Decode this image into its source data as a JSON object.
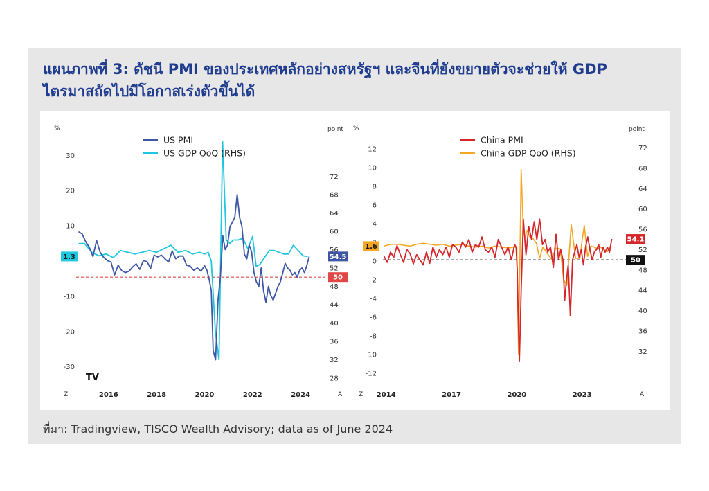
{
  "title_line1": "แผนภาพที่ 3: ดัชนี PMI ของประเทศหลักอย่างสหรัฐฯ และจีนที่ยังขยายตัวจะช่วยให้ GDP",
  "title_line2": "ไตรมาสถัดไปมีโอกาสเร่งตัวขึ้นได้",
  "source": "ที่มา: Tradingview, TISCO Wealth Advisory; data as of June 2024",
  "chart_data": [
    {
      "type": "line",
      "left_unit": "%",
      "right_unit": "point",
      "corner_left": "Z",
      "corner_right": "A",
      "logo": "TV",
      "left_axis": {
        "ticks": [
          30,
          20,
          10,
          -10,
          -20,
          -30
        ],
        "range": [
          -34,
          34
        ]
      },
      "right_axis": {
        "ticks": [
          72,
          68,
          64,
          60,
          56,
          52,
          48,
          44,
          40,
          36,
          32,
          28
        ],
        "range": [
          27.4,
          79.6
        ]
      },
      "x_labels": [
        "2016",
        "2018",
        "2020",
        "2022",
        "2024"
      ],
      "x_label_positions": [
        2016,
        2018,
        2020,
        2022,
        2024
      ],
      "x_range": [
        2014.65,
        2024.4
      ],
      "legend": [
        "US PMI",
        "US GDP QoQ (RHS)"
      ],
      "colors": {
        "pmi": "#3d57a5",
        "gdp": "#1ec6de",
        "ref": "#e04848"
      },
      "series": [
        {
          "name": "US PMI",
          "x": [
            2014.75,
            2014.9,
            2015.05,
            2015.2,
            2015.35,
            2015.5,
            2015.65,
            2015.8,
            2015.95,
            2016.1,
            2016.25,
            2016.4,
            2016.55,
            2016.7,
            2016.85,
            2017.0,
            2017.15,
            2017.3,
            2017.45,
            2017.6,
            2017.75,
            2017.9,
            2018.05,
            2018.2,
            2018.35,
            2018.5,
            2018.65,
            2018.8,
            2018.95,
            2019.1,
            2019.25,
            2019.4,
            2019.55,
            2019.7,
            2019.85,
            2020.0,
            2020.1,
            2020.2,
            2020.28,
            2020.36,
            2020.46,
            2020.56,
            2020.66,
            2020.76,
            2020.86,
            2020.96,
            2021.06,
            2021.16,
            2021.26,
            2021.36,
            2021.46,
            2021.56,
            2021.66,
            2021.76,
            2021.86,
            2021.96,
            2022.06,
            2022.16,
            2022.26,
            2022.36,
            2022.46,
            2022.56,
            2022.66,
            2022.76,
            2022.86,
            2022.96,
            2023.06,
            2023.16,
            2023.26,
            2023.36,
            2023.46,
            2023.56,
            2023.66,
            2023.76,
            2023.86,
            2023.96,
            2024.06,
            2024.16,
            2024.26,
            2024.36
          ],
          "values": [
            59.9,
            59.4,
            57.7,
            56.5,
            54.5,
            58.0,
            55.4,
            54.3,
            53.6,
            53.3,
            50.5,
            52.6,
            51.4,
            51.0,
            51.3,
            52.2,
            52.9,
            51.7,
            53.6,
            53.4,
            51.9,
            54.8,
            54.4,
            54.8,
            54.0,
            53.3,
            55.7,
            54.0,
            54.6,
            54.6,
            52.6,
            52.4,
            51.5,
            52.0,
            51.3,
            52.5,
            51.5,
            49.3,
            47.0,
            34.0,
            32.0,
            45.0,
            50.0,
            59.0,
            56.0,
            57.0,
            61.0,
            62.0,
            63.0,
            68.0,
            63.0,
            61.0,
            55.0,
            54.0,
            57.0,
            55.5,
            51.0,
            49.0,
            48.0,
            52.0,
            47.0,
            44.5,
            48.0,
            46.0,
            45.0,
            46.5,
            48.0,
            49.0,
            51.0,
            53.0,
            52.0,
            51.5,
            50.5,
            51.0,
            50.0,
            51.5,
            52.0,
            51.0,
            52.5,
            54.5
          ]
        },
        {
          "name": "US GDP QoQ (RHS)",
          "x": [
            2014.75,
            2015.0,
            2015.3,
            2015.6,
            2015.9,
            2016.2,
            2016.5,
            2016.8,
            2017.1,
            2017.4,
            2017.7,
            2018.0,
            2018.3,
            2018.6,
            2018.9,
            2019.2,
            2019.5,
            2019.8,
            2020.0,
            2020.15,
            2020.28,
            2020.45,
            2020.6,
            2020.75,
            2020.9,
            2021.05,
            2021.2,
            2021.4,
            2021.6,
            2021.8,
            2022.0,
            2022.15,
            2022.3,
            2022.5,
            2022.7,
            2022.9,
            2023.1,
            2023.3,
            2023.5,
            2023.7,
            2023.9,
            2024.1,
            2024.3
          ],
          "values": [
            5.0,
            5.0,
            2.5,
            1.5,
            2.0,
            1.0,
            3.0,
            2.5,
            2.0,
            2.5,
            3.0,
            2.5,
            3.5,
            4.5,
            2.5,
            3.0,
            2.0,
            2.5,
            2.0,
            2.5,
            0,
            -20,
            -28,
            34,
            6,
            5,
            6,
            6,
            6.5,
            3.5,
            7,
            -1.5,
            -1,
            1,
            3,
            3,
            2.5,
            2,
            2,
            4.5,
            3,
            1.5,
            1.3
          ]
        }
      ],
      "end_labels": {
        "left": "1.3",
        "right": "54.5",
        "ref": "50"
      },
      "reference_line": 50
    },
    {
      "type": "line",
      "left_unit": "%",
      "right_unit": "point",
      "corner_left": "Z",
      "corner_right": "A",
      "left_axis": {
        "ticks": [
          12,
          10,
          8,
          6,
          4,
          2,
          0,
          -2,
          -4,
          -6,
          -8,
          -10,
          -12
        ],
        "range": [
          -12.8,
          12.8
        ]
      },
      "right_axis": {
        "ticks": [
          72,
          68,
          64,
          60,
          56,
          52,
          48,
          44,
          40,
          36,
          32
        ],
        "range": [
          26.2,
          73.3
        ]
      },
      "x_labels": [
        "2014",
        "2017",
        "2020",
        "2023"
      ],
      "x_label_positions": [
        2014,
        2017,
        2020,
        2023
      ],
      "x_range": [
        2013.85,
        2024.6
      ],
      "legend": [
        "China PMI",
        "China GDP QoQ (RHS)"
      ],
      "colors": {
        "pmi": "#d4262b",
        "gdp": "#f5a623",
        "ref": "#111111"
      },
      "series": [
        {
          "name": "China PMI",
          "x": [
            2013.9,
            2014.05,
            2014.2,
            2014.35,
            2014.5,
            2014.65,
            2014.8,
            2014.95,
            2015.1,
            2015.25,
            2015.4,
            2015.55,
            2015.7,
            2015.85,
            2016.0,
            2016.15,
            2016.3,
            2016.45,
            2016.6,
            2016.75,
            2016.9,
            2017.05,
            2017.2,
            2017.35,
            2017.5,
            2017.65,
            2017.8,
            2017.95,
            2018.1,
            2018.25,
            2018.4,
            2018.55,
            2018.7,
            2018.85,
            2019.0,
            2019.15,
            2019.3,
            2019.45,
            2019.6,
            2019.75,
            2019.9,
            2019.97,
            2020.02,
            2020.07,
            2020.12,
            2020.2,
            2020.3,
            2020.42,
            2020.55,
            2020.68,
            2020.8,
            2020.92,
            2021.05,
            2021.18,
            2021.3,
            2021.42,
            2021.55,
            2021.68,
            2021.8,
            2021.92,
            2022.02,
            2022.12,
            2022.2,
            2022.28,
            2022.36,
            2022.46,
            2022.56,
            2022.66,
            2022.76,
            2022.86,
            2022.96,
            2023.06,
            2023.16,
            2023.26,
            2023.36,
            2023.46,
            2023.56,
            2023.66,
            2023.76,
            2023.86,
            2023.96,
            2024.06,
            2024.16,
            2024.26,
            2024.36
          ],
          "values": [
            50.7,
            49.5,
            51.5,
            50.5,
            52.8,
            51.0,
            49.5,
            52.0,
            51.2,
            49.2,
            51.0,
            50.0,
            49.0,
            51.5,
            49.3,
            52.5,
            50.5,
            52.0,
            51.0,
            52.5,
            50.5,
            53.0,
            52.5,
            51.5,
            53.5,
            52.5,
            54.0,
            51.5,
            53.0,
            52.5,
            54.5,
            52.0,
            51.5,
            52.5,
            50.5,
            54.0,
            52.5,
            51.0,
            52.5,
            50.0,
            53.0,
            52.5,
            48.0,
            38.0,
            30.0,
            44.0,
            58.0,
            51.0,
            56.5,
            54.0,
            57.5,
            54.0,
            58.0,
            53.0,
            54.0,
            51.5,
            52.5,
            48.5,
            55.0,
            50.0,
            52.0,
            50.0,
            42.0,
            46.0,
            49.0,
            39.0,
            50.0,
            51.5,
            53.0,
            50.5,
            52.0,
            49.0,
            52.5,
            54.5,
            52.0,
            50.0,
            51.5,
            52.0,
            53.0,
            50.5,
            52.5,
            51.5,
            52.5,
            51.5,
            54.1
          ]
        },
        {
          "name": "China GDP QoQ (RHS)",
          "x": [
            2013.9,
            2014.2,
            2014.5,
            2014.8,
            2015.1,
            2015.4,
            2015.7,
            2016.0,
            2016.3,
            2016.6,
            2016.9,
            2017.2,
            2017.5,
            2017.8,
            2018.1,
            2018.4,
            2018.7,
            2019.0,
            2019.3,
            2019.6,
            2019.9,
            2020.0,
            2020.08,
            2020.2,
            2020.3,
            2020.38,
            2020.48,
            2020.6,
            2020.75,
            2020.9,
            2021.05,
            2021.2,
            2021.4,
            2021.6,
            2021.8,
            2022.0,
            2022.15,
            2022.3,
            2022.5,
            2022.7,
            2022.9,
            2023.0,
            2023.1,
            2023.25,
            2023.4,
            2023.55,
            2023.7,
            2023.85,
            2024.0,
            2024.15,
            2024.3
          ],
          "values": [
            1.6,
            1.8,
            1.8,
            1.7,
            1.6,
            1.8,
            1.9,
            1.8,
            1.7,
            1.8,
            1.6,
            1.7,
            1.8,
            1.6,
            1.5,
            1.6,
            1.4,
            1.6,
            1.5,
            1.4,
            1.5,
            1.4,
            -10.0,
            9.8,
            3.0,
            2.5,
            3.3,
            2.6,
            2.4,
            1.9,
            0.3,
            1.5,
            0.8,
            0.2,
            1.4,
            1.3,
            -2.0,
            -2.6,
            3.9,
            0.3,
            0.3,
            2.2,
            3.8,
            0.5,
            1.6,
            1.5,
            1.3,
            1.5,
            1.2,
            1.0,
            1.6
          ]
        }
      ],
      "end_labels": {
        "left": "1.6",
        "right": "54.1",
        "ref": "50"
      },
      "reference_line": 50
    }
  ]
}
